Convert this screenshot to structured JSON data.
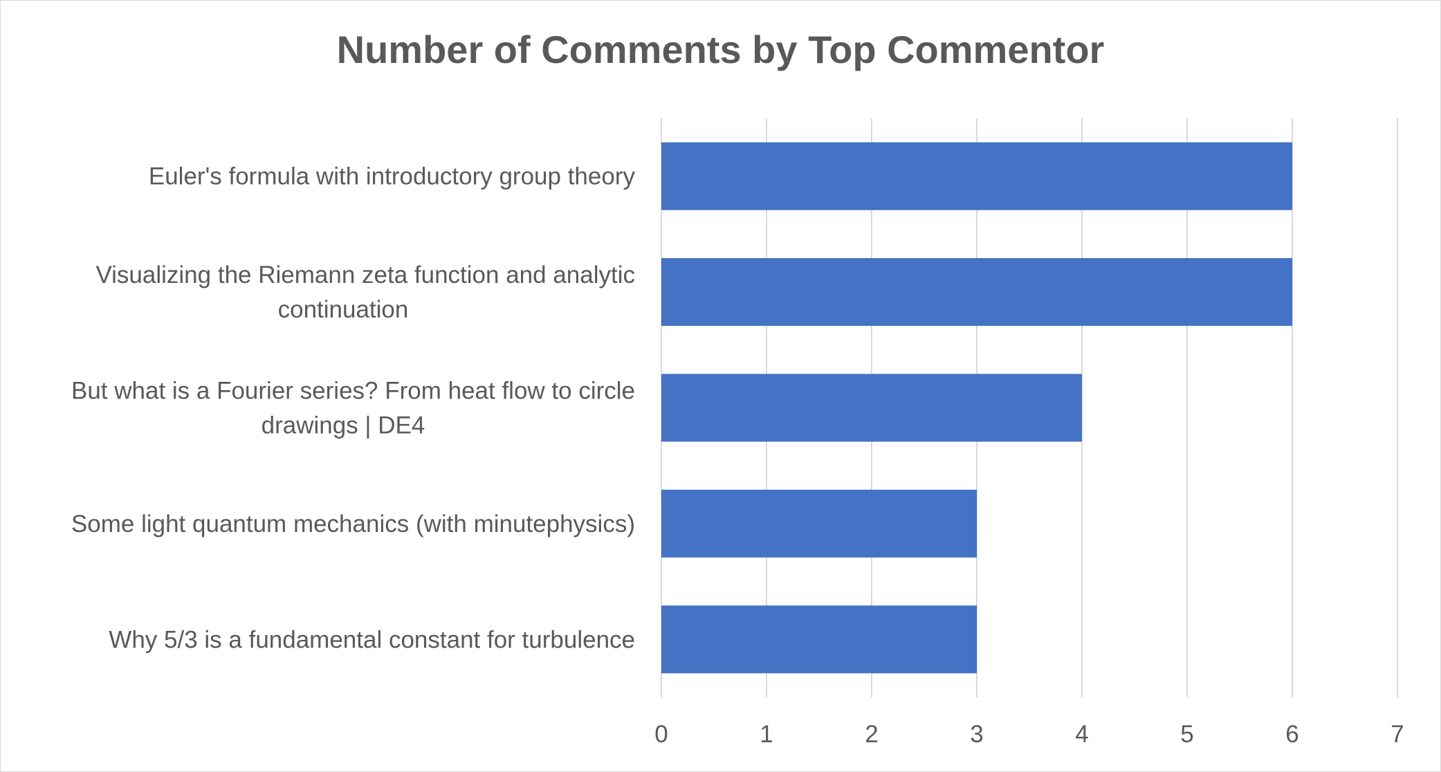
{
  "chart_data": {
    "type": "bar",
    "orientation": "horizontal",
    "title": "Number of Comments by Top Commentor",
    "xlabel": "",
    "ylabel": "",
    "categories": [
      [
        "Euler's formula with introductory group theory"
      ],
      [
        "Visualizing the Riemann zeta function and analytic",
        "continuation"
      ],
      [
        "But what is a Fourier series? From heat flow to circle",
        "drawings | DE4"
      ],
      [
        "Some light quantum mechanics (with minutephysics)"
      ],
      [
        "Why 5/3 is a fundamental constant for turbulence"
      ]
    ],
    "values": [
      6,
      6,
      4,
      3,
      3
    ],
    "xlim": [
      0,
      7
    ],
    "xticks": [
      "0",
      "1",
      "2",
      "3",
      "4",
      "5",
      "6",
      "7"
    ],
    "grid": "vertical",
    "legend": "none",
    "bar_color": "#4472C4",
    "grid_color": "#d9d9d9",
    "text_color": "#595959"
  }
}
